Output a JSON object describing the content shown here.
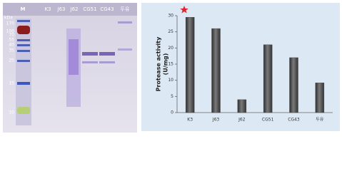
{
  "gel": {
    "marker_unit": "kDa",
    "lane_labels": [
      "M",
      "K3",
      "J63",
      "J62",
      "CG51",
      "CG43",
      "두유"
    ],
    "markers": [
      170,
      100,
      70,
      55,
      40,
      35,
      25,
      15,
      10
    ]
  },
  "chart_data": {
    "type": "bar",
    "y_label": [
      "Protease activity",
      "(U/mg)"
    ],
    "categories": [
      "K3",
      "J63",
      "J62",
      "CG51",
      "CG43",
      "두유"
    ],
    "values": [
      29.5,
      26,
      4,
      21,
      17,
      9.2
    ],
    "color": "#505050",
    "ylim": [
      0,
      30
    ],
    "yticks": [
      0,
      5,
      10,
      15,
      20,
      25,
      30
    ]
  }
}
